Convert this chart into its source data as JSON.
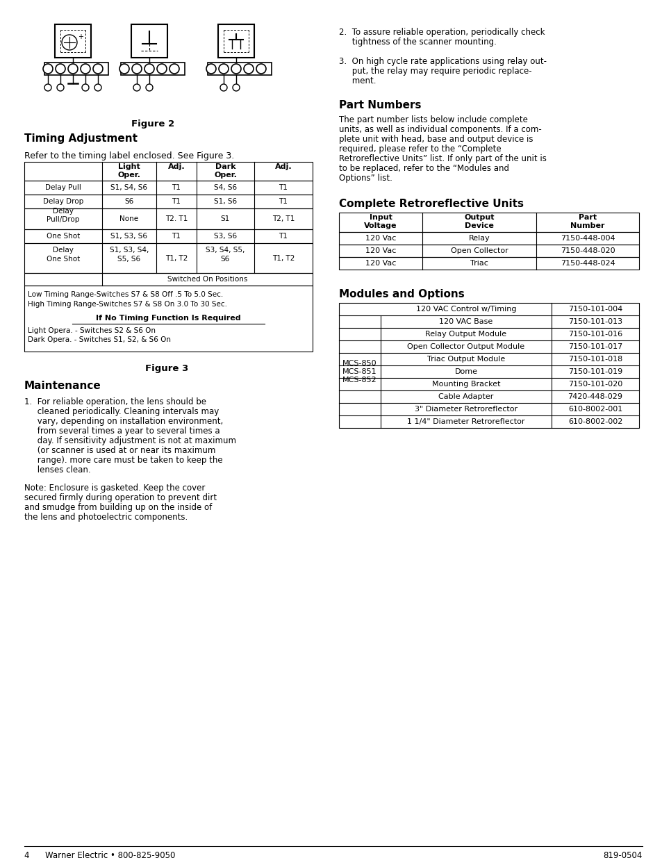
{
  "page_bg": "#ffffff",
  "figure2_caption": "Figure 2",
  "timing_adj_title": "Timing Adjustment",
  "timing_adj_intro": "Refer to the timing label enclosed. See Figure 3.",
  "timing_table_headers": [
    "",
    "Light\nOper.",
    "Adj.",
    "Dark\nOper.",
    "Adj."
  ],
  "timing_table_rows": [
    [
      "Delay Pull",
      "S1, S4, S6",
      "T1",
      "S4, S6",
      "T1"
    ],
    [
      "Delay Drop",
      "S6",
      "T1",
      "S1, S6",
      "T1"
    ],
    [
      "Delay\nPull/Drop",
      "None",
      "T2. T1",
      "S1",
      "T2, T1"
    ],
    [
      "One Shot",
      "S1, S3, S6",
      "T1",
      "S3, S6",
      "T1"
    ],
    [
      "Delay\nOne Shot",
      "S1, S3, S4,\nS5, S6",
      "T1, T2",
      "S3, S4, S5,\nS6",
      "T1, T2"
    ]
  ],
  "timing_table_notes": [
    "Low Timing Range-Switches S7 & S8 Off .5 To 5.0 Sec.",
    "High Timing Range-Switches S7 & S8 On 3.0 To 30 Sec."
  ],
  "timing_no_timing_title": "If No Timing Function Is Required",
  "timing_no_timing_lines": [
    "Light Opera. - Switches S2 & S6 On",
    "Dark Opera. - Switches S1, S2, & S6 On"
  ],
  "figure3_caption": "Figure 3",
  "maintenance_title": "Maintenance",
  "right_item2_line1": "2.  To assure reliable operation, periodically check",
  "right_item2_line2": "     tightness of the scanner mounting.",
  "right_item3_line1": "3.  On high cycle rate applications using relay out-",
  "right_item3_line2": "     put, the relay may require periodic replace-",
  "right_item3_line3": "     ment.",
  "part_numbers_title": "Part Numbers",
  "part_numbers_lines": [
    "The part number lists below include complete",
    "units, as well as individual components. If a com-",
    "plete unit with head, base and output device is",
    "required, please refer to the “Complete",
    "Retroreflective Units” list. If only part of the unit is",
    "to be replaced, refer to the “Modules and",
    "Options” list."
  ],
  "complete_retro_title": "Complete Retroreflective Units",
  "complete_retro_headers": [
    "Input\nVoltage",
    "Output\nDevice",
    "Part\nNumber"
  ],
  "complete_retro_rows": [
    [
      "120 Vac",
      "Relay",
      "7150-448-004"
    ],
    [
      "120 Vac",
      "Open Collector",
      "7150-448-020"
    ],
    [
      "120 Vac",
      "Triac",
      "7150-448-024"
    ]
  ],
  "modules_title": "Modules and Options",
  "modules_rows": [
    [
      "",
      "120 VAC Control w/Timing",
      "7150-101-004"
    ],
    [
      "mcs",
      "120 VAC Base",
      "7150-101-013"
    ],
    [
      "mcs",
      "Relay Output Module",
      "7150-101-016"
    ],
    [
      "mcs",
      "Open Collector Output Module",
      "7150-101-017"
    ],
    [
      "mcs",
      "Triac Output Module",
      "7150-101-018"
    ],
    [
      "mcs",
      "Dome",
      "7150-101-019"
    ],
    [
      "mcs",
      "Mounting Bracket",
      "7150-101-020"
    ],
    [
      "mcs",
      "Cable Adapter",
      "7420-448-029"
    ],
    [
      "mcs",
      "3\" Diameter Retroreflector",
      "610-8002-001"
    ],
    [
      "mcs",
      "1 1/4\" Diameter Retroreflector",
      "610-8002-002"
    ]
  ],
  "mcs_label": "MCS-850\nMCS-851\nMCS-852",
  "maintenance_p1_lines": [
    "1.  For reliable operation, the lens should be",
    "     cleaned periodically. Cleaning intervals may",
    "     vary, depending on installation environment,",
    "     from several times a year to several times a",
    "     day. If sensitivity adjustment is not at maximum",
    "     (or scanner is used at or near its maximum",
    "     range). more care must be taken to keep the",
    "     lenses clean."
  ],
  "maintenance_note_lines": [
    "Note: Enclosure is gasketed. Keep the cover",
    "secured firmly during operation to prevent dirt",
    "and smudge from building up on the inside of",
    "the lens and photoelectric components."
  ],
  "footer_left": "4      Warner Electric • 800-825-9050",
  "footer_right": "819-0504"
}
